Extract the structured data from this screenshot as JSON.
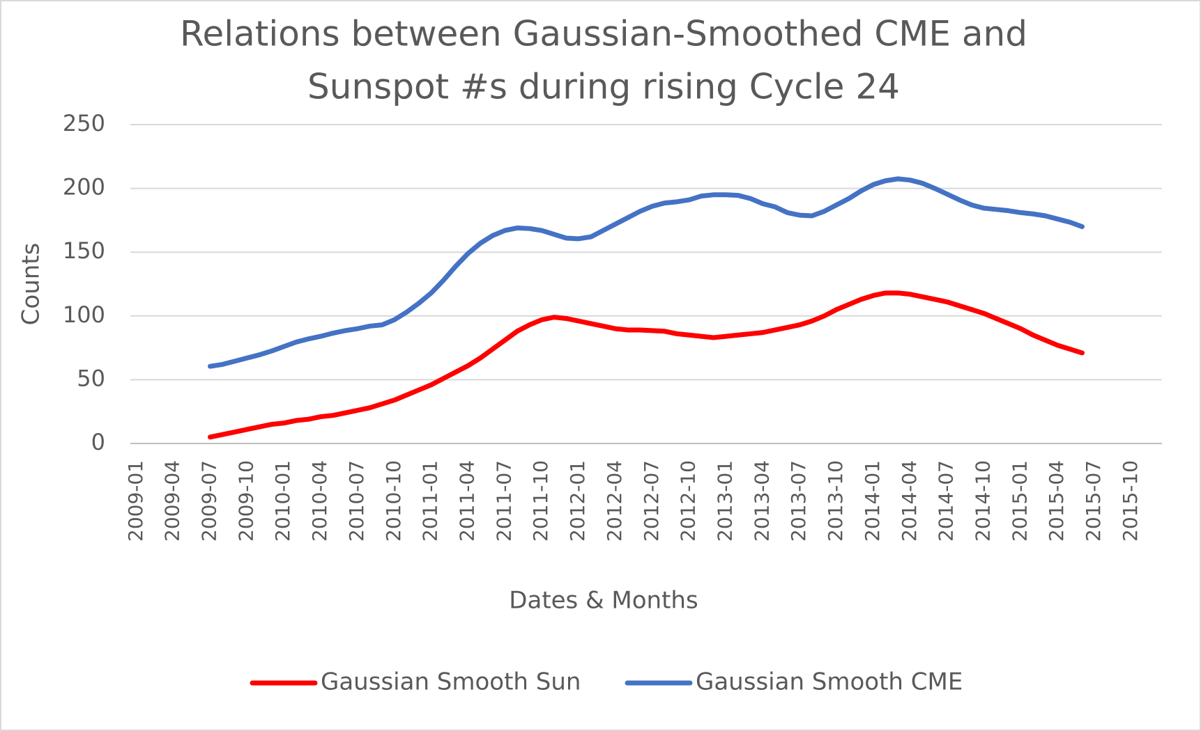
{
  "chart_data": {
    "type": "line",
    "title": [
      "Relations between Gaussian-Smoothed CME and",
      "Sunspot #s during rising Cycle 24"
    ],
    "x_label": "Dates & Months",
    "y_label": "Counts",
    "x": [
      "2009-07",
      "2009-08",
      "2009-09",
      "2009-10",
      "2009-11",
      "2009-12",
      "2010-01",
      "2010-02",
      "2010-03",
      "2010-04",
      "2010-05",
      "2010-06",
      "2010-07",
      "2010-08",
      "2010-09",
      "2010-10",
      "2010-11",
      "2010-12",
      "2011-01",
      "2011-02",
      "2011-03",
      "2011-04",
      "2011-05",
      "2011-06",
      "2011-07",
      "2011-08",
      "2011-09",
      "2011-10",
      "2011-11",
      "2011-12",
      "2012-01",
      "2012-02",
      "2012-03",
      "2012-04",
      "2012-05",
      "2012-06",
      "2012-07",
      "2012-08",
      "2012-09",
      "2012-10",
      "2012-11",
      "2012-12",
      "2013-01",
      "2013-02",
      "2013-03",
      "2013-04",
      "2013-05",
      "2013-06",
      "2013-07",
      "2013-08",
      "2013-09",
      "2013-10",
      "2013-11",
      "2013-12",
      "2014-01",
      "2014-02",
      "2014-03",
      "2014-04",
      "2014-05",
      "2014-06",
      "2014-07",
      "2014-08",
      "2014-09",
      "2014-10",
      "2014-11",
      "2014-12",
      "2015-01",
      "2015-02",
      "2015-03",
      "2015-04",
      "2015-05",
      "2015-06"
    ],
    "series": [
      {
        "name": "Gaussian Smooth Sun",
        "color": "#ff0000",
        "values": [
          5,
          7,
          9,
          11,
          13,
          15,
          16,
          18,
          19,
          21,
          22,
          24,
          26,
          28,
          31,
          34,
          38,
          42,
          46,
          51,
          56,
          61,
          67,
          74,
          81,
          88,
          93,
          97,
          99,
          98,
          96,
          94,
          92,
          90,
          89,
          89,
          88.5,
          88,
          86,
          85,
          84,
          83,
          84,
          85,
          86,
          87,
          89,
          91,
          93,
          96,
          100,
          105,
          109,
          113,
          116,
          118,
          118,
          117,
          115,
          113,
          111,
          108,
          105,
          102,
          98,
          94,
          90,
          85,
          81,
          77,
          74,
          71
        ]
      },
      {
        "name": "Gaussian Smooth CME",
        "color": "#4472c4",
        "values": [
          60.5,
          62,
          64.5,
          67,
          69.5,
          72.5,
          76,
          79.5,
          82,
          84,
          86.5,
          88.5,
          90,
          92,
          93,
          97,
          103,
          110,
          118,
          128,
          139,
          149,
          157,
          163,
          167,
          169,
          168.5,
          167,
          164,
          161,
          160.5,
          162,
          167,
          172,
          177,
          182,
          186,
          188.5,
          189.5,
          191,
          194,
          195,
          195,
          194.5,
          192,
          188,
          185.5,
          181,
          179,
          178.5,
          182,
          187,
          192,
          198,
          203,
          206,
          207.5,
          206.5,
          204,
          200,
          195.5,
          191,
          187,
          184.5,
          183.5,
          182.5,
          181,
          180,
          178.5,
          176,
          173.5,
          170
        ]
      }
    ],
    "xlim": [
      "2009-01",
      "2015-12"
    ],
    "xticks": [
      "2009-01",
      "2009-04",
      "2009-07",
      "2009-10",
      "2010-01",
      "2010-04",
      "2010-07",
      "2010-10",
      "2011-01",
      "2011-04",
      "2011-07",
      "2011-10",
      "2012-01",
      "2012-04",
      "2012-07",
      "2012-10",
      "2013-01",
      "2013-04",
      "2013-07",
      "2013-10",
      "2014-01",
      "2014-04",
      "2014-07",
      "2014-10",
      "2015-01",
      "2015-04",
      "2015-07",
      "2015-10"
    ],
    "ylim": [
      0,
      250
    ],
    "yticks": [
      0,
      50,
      100,
      150,
      200,
      250
    ],
    "grid": true,
    "legend": "bottom"
  }
}
